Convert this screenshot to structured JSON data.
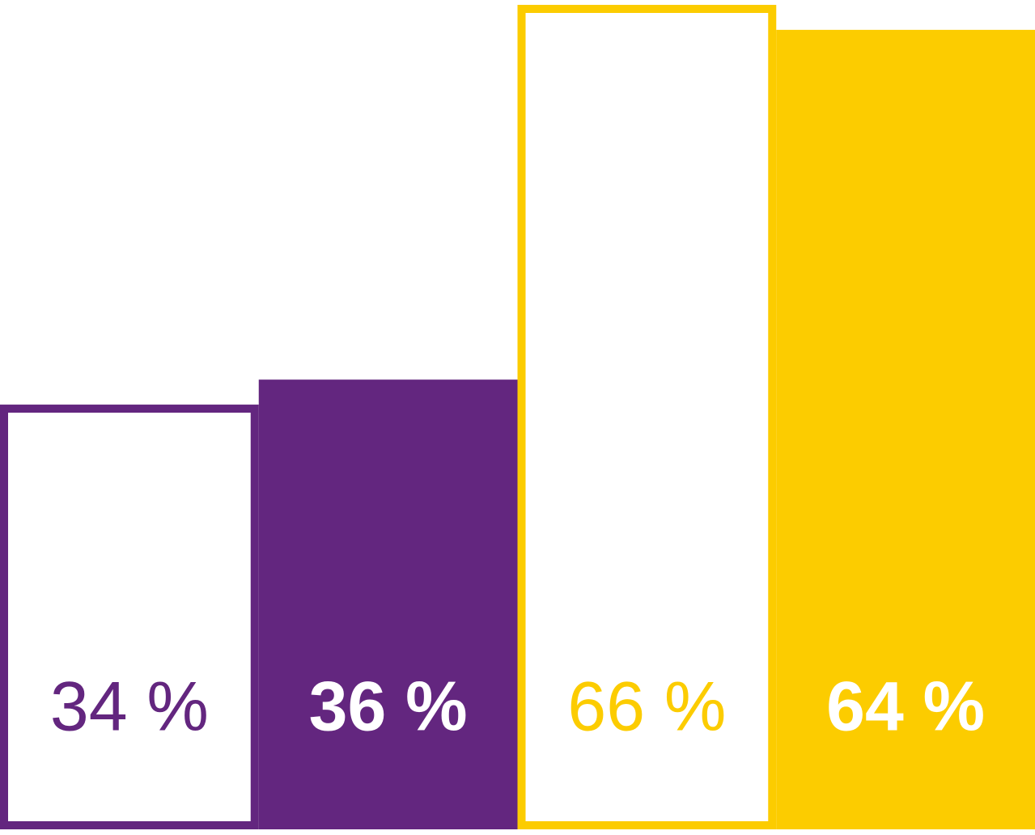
{
  "chart_data": {
    "type": "bar",
    "values": [
      34,
      36,
      66,
      64
    ],
    "value_labels": [
      "34 %",
      "36 %",
      "66 %",
      "64 %"
    ],
    "colors": [
      "#63267f",
      "#63267f",
      "#fccc00",
      "#fccc00"
    ],
    "styles": [
      "outline",
      "solid",
      "outline",
      "solid"
    ]
  }
}
